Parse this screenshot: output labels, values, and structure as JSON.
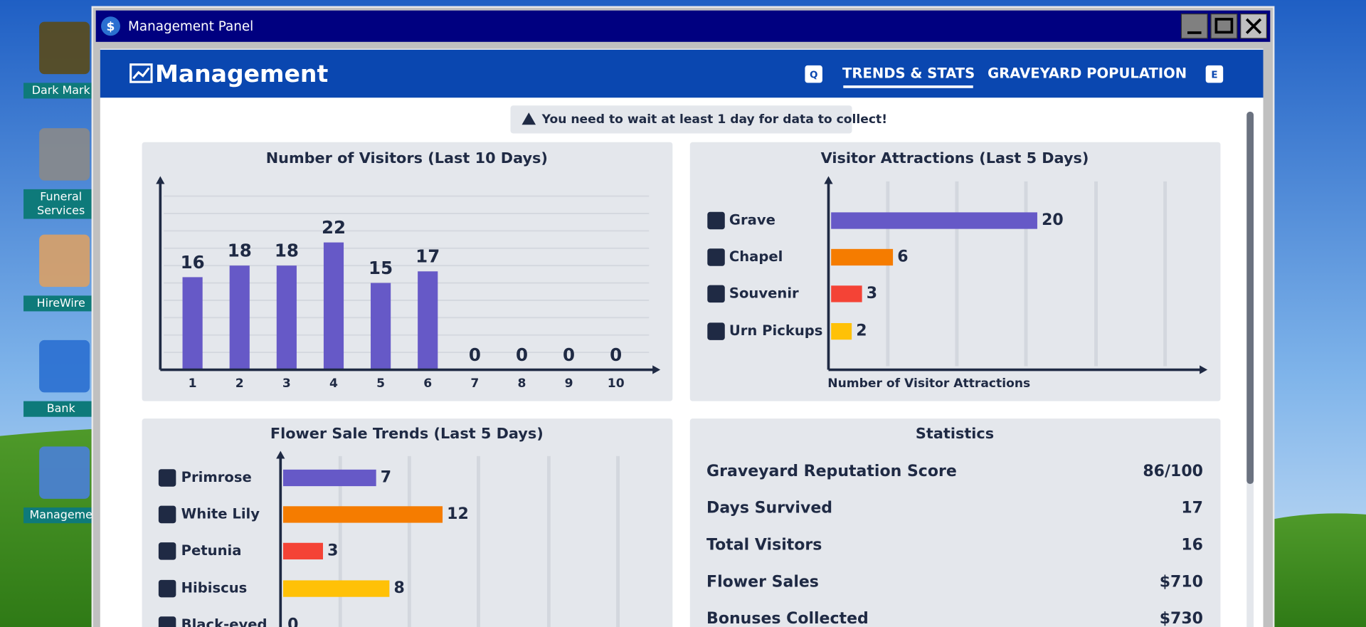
{
  "desktop_icons": [
    {
      "lines": [
        "Dark Mark"
      ]
    },
    {
      "lines": [
        "Funeral",
        "Services"
      ]
    },
    {
      "lines": [
        "HireWire"
      ]
    },
    {
      "lines": [
        "Bank"
      ]
    },
    {
      "lines": [
        "Manageme"
      ]
    }
  ],
  "window": {
    "title": "Management Panel"
  },
  "header": {
    "title": "Management",
    "tabs": [
      "Q",
      "TRENDS & STATS",
      "GRAVEYARD POPULATION",
      "E"
    ]
  },
  "notice": "You need to wait at least 1 day for data to collect!",
  "chart_data": [
    {
      "type": "bar",
      "title": "Number of Visitors (Last 10 Days)",
      "categories": [
        "1",
        "2",
        "3",
        "4",
        "5",
        "6",
        "7",
        "8",
        "9",
        "10"
      ],
      "values": [
        16,
        18,
        18,
        22,
        15,
        17,
        0,
        0,
        0,
        0
      ],
      "color": "#6659c7",
      "ylim": [
        0,
        33
      ],
      "yticks": [
        3,
        6,
        9,
        12,
        15,
        18,
        21,
        24,
        27,
        30
      ],
      "grid": true
    },
    {
      "type": "barh",
      "title": "Visitor Attractions (Last 5 Days)",
      "categories": [
        "Grave",
        "Chapel",
        "Souvenir",
        "Urn Pickups"
      ],
      "values": [
        20,
        6,
        3,
        2
      ],
      "colors": [
        "#6659c7",
        "#f57c00",
        "#f44336",
        "#ffc107"
      ],
      "xlabel": "Number of Visitor Attractions",
      "xlim": [
        0,
        36
      ],
      "xticks": [
        5.5,
        12.2,
        18.9,
        25.7,
        32.4
      ],
      "grid": true
    },
    {
      "type": "barh",
      "title": "Flower Sale Trends (Last 5 Days)",
      "categories": [
        "Primrose",
        "White Lily",
        "Petunia",
        "Hibiscus",
        "Black-eyed"
      ],
      "values": [
        7,
        12,
        3,
        8,
        0
      ],
      "colors": [
        "#6659c7",
        "#f57c00",
        "#f44336",
        "#ffc107",
        "#6659c7"
      ],
      "xlim": [
        0,
        28
      ],
      "xticks": [
        4.3,
        9.5,
        14.7,
        20,
        25.2
      ],
      "grid": true
    }
  ],
  "statistics": {
    "title": "Statistics",
    "rows": [
      [
        "Graveyard Reputation Score",
        "86/100"
      ],
      [
        "Days Survived",
        "17"
      ],
      [
        "Total Visitors",
        "16"
      ],
      [
        "Flower Sales",
        "$710"
      ],
      [
        "Bonuses Collected",
        "$730"
      ]
    ]
  }
}
